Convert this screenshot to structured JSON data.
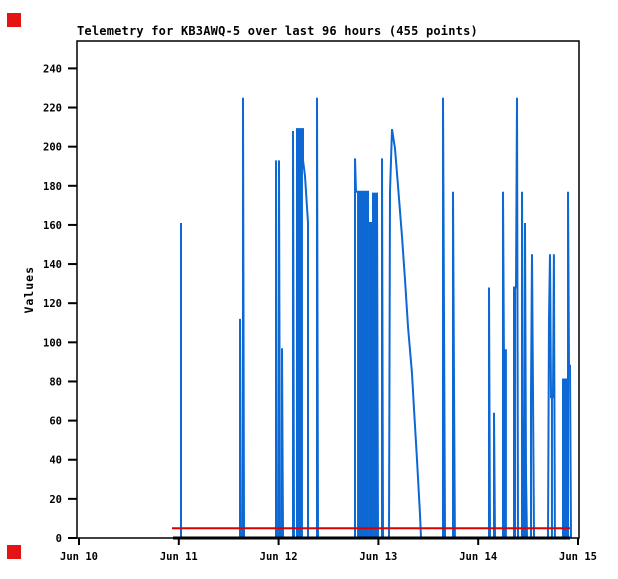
{
  "page": {
    "background": "#ffffff"
  },
  "corner_markers": {
    "color": "#e41414",
    "positions": [
      "top-left",
      "bottom-left"
    ]
  },
  "chart_data": {
    "type": "line",
    "title": "Telemetry for KB3AWQ-5 over last 96 hours (455 points)",
    "xlabel": "",
    "ylabel": "Values",
    "x_tick_labels": [
      "Jun 10",
      "Jun 11",
      "Jun 12",
      "Jun 13",
      "Jun 14",
      "Jun 15"
    ],
    "x_range_days": [
      0,
      5
    ],
    "y_ticks": [
      0,
      20,
      40,
      60,
      80,
      100,
      120,
      140,
      160,
      180,
      200,
      220,
      240
    ],
    "y_range": [
      0,
      254
    ],
    "grid": false,
    "legend": "none",
    "frame_color": "#000000",
    "series": [
      {
        "name": "telemetry-values",
        "color": "#0d68d4",
        "width": 2,
        "blocks": [
          [
            2.184,
            2.244,
            209
          ],
          [
            2.786,
            2.896,
            177
          ],
          [
            2.896,
            2.946,
            161
          ],
          [
            2.946,
            2.986,
            176
          ],
          [
            4.258,
            4.278,
            96
          ],
          [
            4.359,
            4.379,
            128
          ],
          [
            4.729,
            4.749,
            72
          ],
          [
            4.85,
            4.88,
            81
          ]
        ],
        "points": [
          [
            0.942,
            0
          ],
          [
            1.022,
            0
          ],
          [
            1.022,
            161
          ],
          [
            1.022,
            0
          ],
          [
            1.613,
            0
          ],
          [
            1.613,
            112
          ],
          [
            1.623,
            0
          ],
          [
            1.643,
            0
          ],
          [
            1.643,
            225
          ],
          [
            1.653,
            0
          ],
          [
            1.974,
            0
          ],
          [
            1.974,
            193
          ],
          [
            1.984,
            0
          ],
          [
            2.004,
            0
          ],
          [
            2.004,
            193
          ],
          [
            2.014,
            0
          ],
          [
            2.034,
            0
          ],
          [
            2.034,
            97
          ],
          [
            2.044,
            0
          ],
          [
            2.144,
            0
          ],
          [
            2.144,
            208
          ],
          [
            2.154,
            0
          ],
          [
            2.184,
            0
          ],
          [
            2.184,
            209
          ],
          [
            2.244,
            209
          ],
          [
            2.244,
            193
          ],
          [
            2.265,
            185
          ],
          [
            2.275,
            177
          ],
          [
            2.285,
            169
          ],
          [
            2.295,
            161
          ],
          [
            2.295,
            0
          ],
          [
            2.385,
            0
          ],
          [
            2.385,
            225
          ],
          [
            2.395,
            0
          ],
          [
            2.766,
            0
          ],
          [
            2.766,
            194
          ],
          [
            2.776,
            177
          ],
          [
            2.786,
            177
          ],
          [
            2.896,
            177
          ],
          [
            2.896,
            161
          ],
          [
            2.946,
            161
          ],
          [
            2.946,
            176
          ],
          [
            2.986,
            176
          ],
          [
            2.996,
            0
          ],
          [
            3.036,
            0
          ],
          [
            3.036,
            194
          ],
          [
            3.046,
            0
          ],
          [
            3.106,
            0
          ],
          [
            3.116,
            177
          ],
          [
            3.136,
            209
          ],
          [
            3.166,
            199
          ],
          [
            3.196,
            180
          ],
          [
            3.236,
            154
          ],
          [
            3.267,
            132
          ],
          [
            3.297,
            108
          ],
          [
            3.337,
            84
          ],
          [
            3.357,
            66
          ],
          [
            3.387,
            40
          ],
          [
            3.417,
            12
          ],
          [
            3.427,
            0
          ],
          [
            3.647,
            0
          ],
          [
            3.647,
            225
          ],
          [
            3.657,
            112
          ],
          [
            3.667,
            0
          ],
          [
            3.747,
            0
          ],
          [
            3.747,
            177
          ],
          [
            3.757,
            88
          ],
          [
            3.767,
            0
          ],
          [
            4.108,
            0
          ],
          [
            4.108,
            128
          ],
          [
            4.118,
            0
          ],
          [
            4.158,
            0
          ],
          [
            4.158,
            64
          ],
          [
            4.168,
            0
          ],
          [
            4.248,
            0
          ],
          [
            4.248,
            177
          ],
          [
            4.258,
            96
          ],
          [
            4.278,
            96
          ],
          [
            4.278,
            0
          ],
          [
            4.359,
            0
          ],
          [
            4.359,
            128
          ],
          [
            4.379,
            128
          ],
          [
            4.389,
            225
          ],
          [
            4.399,
            0
          ],
          [
            4.439,
            0
          ],
          [
            4.439,
            177
          ],
          [
            4.449,
            56
          ],
          [
            4.459,
            0
          ],
          [
            4.469,
            0
          ],
          [
            4.469,
            161
          ],
          [
            4.479,
            33
          ],
          [
            4.489,
            0
          ],
          [
            4.529,
            0
          ],
          [
            4.529,
            73
          ],
          [
            4.539,
            145
          ],
          [
            4.549,
            73
          ],
          [
            4.559,
            0
          ],
          [
            4.699,
            0
          ],
          [
            4.709,
            112
          ],
          [
            4.719,
            145
          ],
          [
            4.729,
            72
          ],
          [
            4.749,
            72
          ],
          [
            4.759,
            145
          ],
          [
            4.769,
            0
          ],
          [
            4.85,
            0
          ],
          [
            4.85,
            81
          ],
          [
            4.88,
            81
          ],
          [
            4.88,
            0
          ],
          [
            4.9,
            0
          ],
          [
            4.9,
            177
          ],
          [
            4.91,
            88
          ],
          [
            4.92,
            88
          ],
          [
            4.93,
            0
          ]
        ]
      },
      {
        "name": "zero-baseline",
        "color": "#000000",
        "width": 3,
        "points": [
          [
            0.942,
            0
          ],
          [
            4.92,
            0
          ]
        ]
      },
      {
        "name": "threshold-line",
        "color": "#dd0000",
        "width": 2,
        "points": [
          [
            0.932,
            5
          ],
          [
            4.92,
            5
          ]
        ]
      }
    ]
  }
}
